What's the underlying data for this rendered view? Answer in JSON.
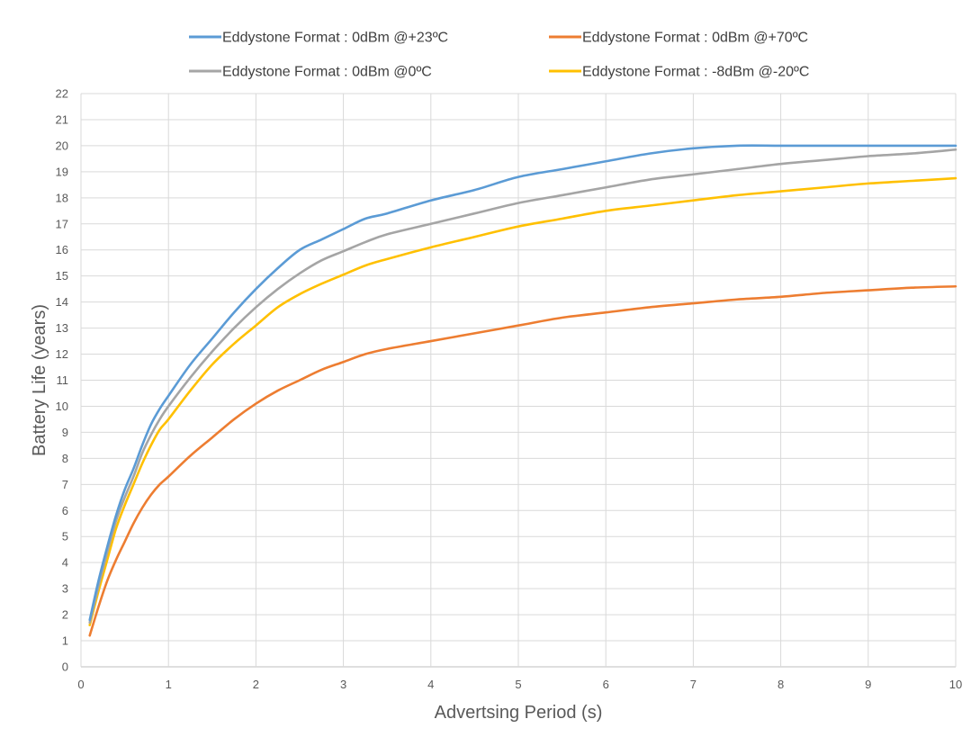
{
  "chart_data": {
    "type": "line",
    "title": "",
    "xlabel": "Advertsing Period (s)",
    "ylabel": "Battery Life (years)",
    "xlim": [
      0,
      10
    ],
    "ylim": [
      0,
      22
    ],
    "xticks": [
      0,
      1,
      2,
      3,
      4,
      5,
      6,
      7,
      8,
      9,
      10
    ],
    "yticks": [
      0,
      1,
      2,
      3,
      4,
      5,
      6,
      7,
      8,
      9,
      10,
      11,
      12,
      13,
      14,
      15,
      16,
      17,
      18,
      19,
      20,
      21,
      22
    ],
    "grid": true,
    "legend_position": "top",
    "series": [
      {
        "name": "Eddystone Format : 0dBm @+23ºC",
        "color": "#5B9BD5",
        "x": [
          0.1,
          0.2,
          0.3,
          0.4,
          0.5,
          0.6,
          0.7,
          0.8,
          0.9,
          1,
          1.25,
          1.5,
          1.75,
          2,
          2.25,
          2.5,
          2.75,
          3,
          3.25,
          3.5,
          4,
          4.5,
          5,
          5.5,
          6,
          6.5,
          7,
          7.5,
          8,
          8.5,
          9,
          9.5,
          10
        ],
        "y": [
          1.8,
          3.3,
          4.6,
          5.8,
          6.8,
          7.6,
          8.5,
          9.3,
          9.9,
          10.4,
          11.6,
          12.6,
          13.6,
          14.5,
          15.3,
          16,
          16.4,
          16.8,
          17.2,
          17.4,
          17.9,
          18.3,
          18.8,
          19.1,
          19.4,
          19.7,
          19.9,
          20,
          20,
          20,
          20,
          20,
          20
        ]
      },
      {
        "name": "Eddystone Format : 0dBm @+70ºC",
        "color": "#ED7D31",
        "x": [
          0.1,
          0.2,
          0.3,
          0.4,
          0.5,
          0.6,
          0.7,
          0.8,
          0.9,
          1,
          1.25,
          1.5,
          1.75,
          2,
          2.25,
          2.5,
          2.75,
          3,
          3.25,
          3.5,
          4,
          4.5,
          5,
          5.5,
          6,
          6.5,
          7,
          7.5,
          8,
          8.5,
          9,
          9.5,
          10
        ],
        "y": [
          1.2,
          2.3,
          3.3,
          4.1,
          4.8,
          5.5,
          6.1,
          6.6,
          7,
          7.3,
          8.1,
          8.8,
          9.5,
          10.1,
          10.6,
          11,
          11.4,
          11.7,
          12,
          12.2,
          12.5,
          12.8,
          13.1,
          13.4,
          13.6,
          13.8,
          13.95,
          14.1,
          14.2,
          14.35,
          14.45,
          14.55,
          14.6
        ]
      },
      {
        "name": "Eddystone Format : 0dBm @0ºC",
        "color": "#A5A5A5",
        "x": [
          0.1,
          0.2,
          0.3,
          0.4,
          0.5,
          0.6,
          0.7,
          0.8,
          0.9,
          1,
          1.25,
          1.5,
          1.75,
          2,
          2.25,
          2.5,
          2.75,
          3,
          3.25,
          3.5,
          4,
          4.5,
          5,
          5.5,
          6,
          6.5,
          7,
          7.5,
          8,
          8.5,
          9,
          9.5,
          10
        ],
        "y": [
          1.7,
          3.1,
          4.4,
          5.6,
          6.5,
          7.3,
          8.2,
          8.9,
          9.5,
          10,
          11.1,
          12.1,
          13,
          13.8,
          14.5,
          15.1,
          15.6,
          15.95,
          16.3,
          16.6,
          17,
          17.4,
          17.8,
          18.1,
          18.4,
          18.7,
          18.9,
          19.1,
          19.3,
          19.45,
          19.6,
          19.7,
          19.85
        ]
      },
      {
        "name": "Eddystone Format : -8dBm @-20ºC",
        "color": "#FFC000",
        "x": [
          0.1,
          0.2,
          0.3,
          0.4,
          0.5,
          0.6,
          0.7,
          0.8,
          0.9,
          1,
          1.25,
          1.5,
          1.75,
          2,
          2.25,
          2.5,
          2.75,
          3,
          3.25,
          3.5,
          4,
          4.5,
          5,
          5.5,
          6,
          6.5,
          7,
          7.5,
          8,
          8.5,
          9,
          9.5,
          10
        ],
        "y": [
          1.6,
          2.9,
          4.1,
          5.3,
          6.2,
          7,
          7.8,
          8.5,
          9.1,
          9.5,
          10.6,
          11.6,
          12.4,
          13.1,
          13.8,
          14.3,
          14.7,
          15.05,
          15.4,
          15.65,
          16.1,
          16.5,
          16.9,
          17.2,
          17.5,
          17.7,
          17.9,
          18.1,
          18.25,
          18.4,
          18.55,
          18.65,
          18.75
        ]
      }
    ]
  }
}
